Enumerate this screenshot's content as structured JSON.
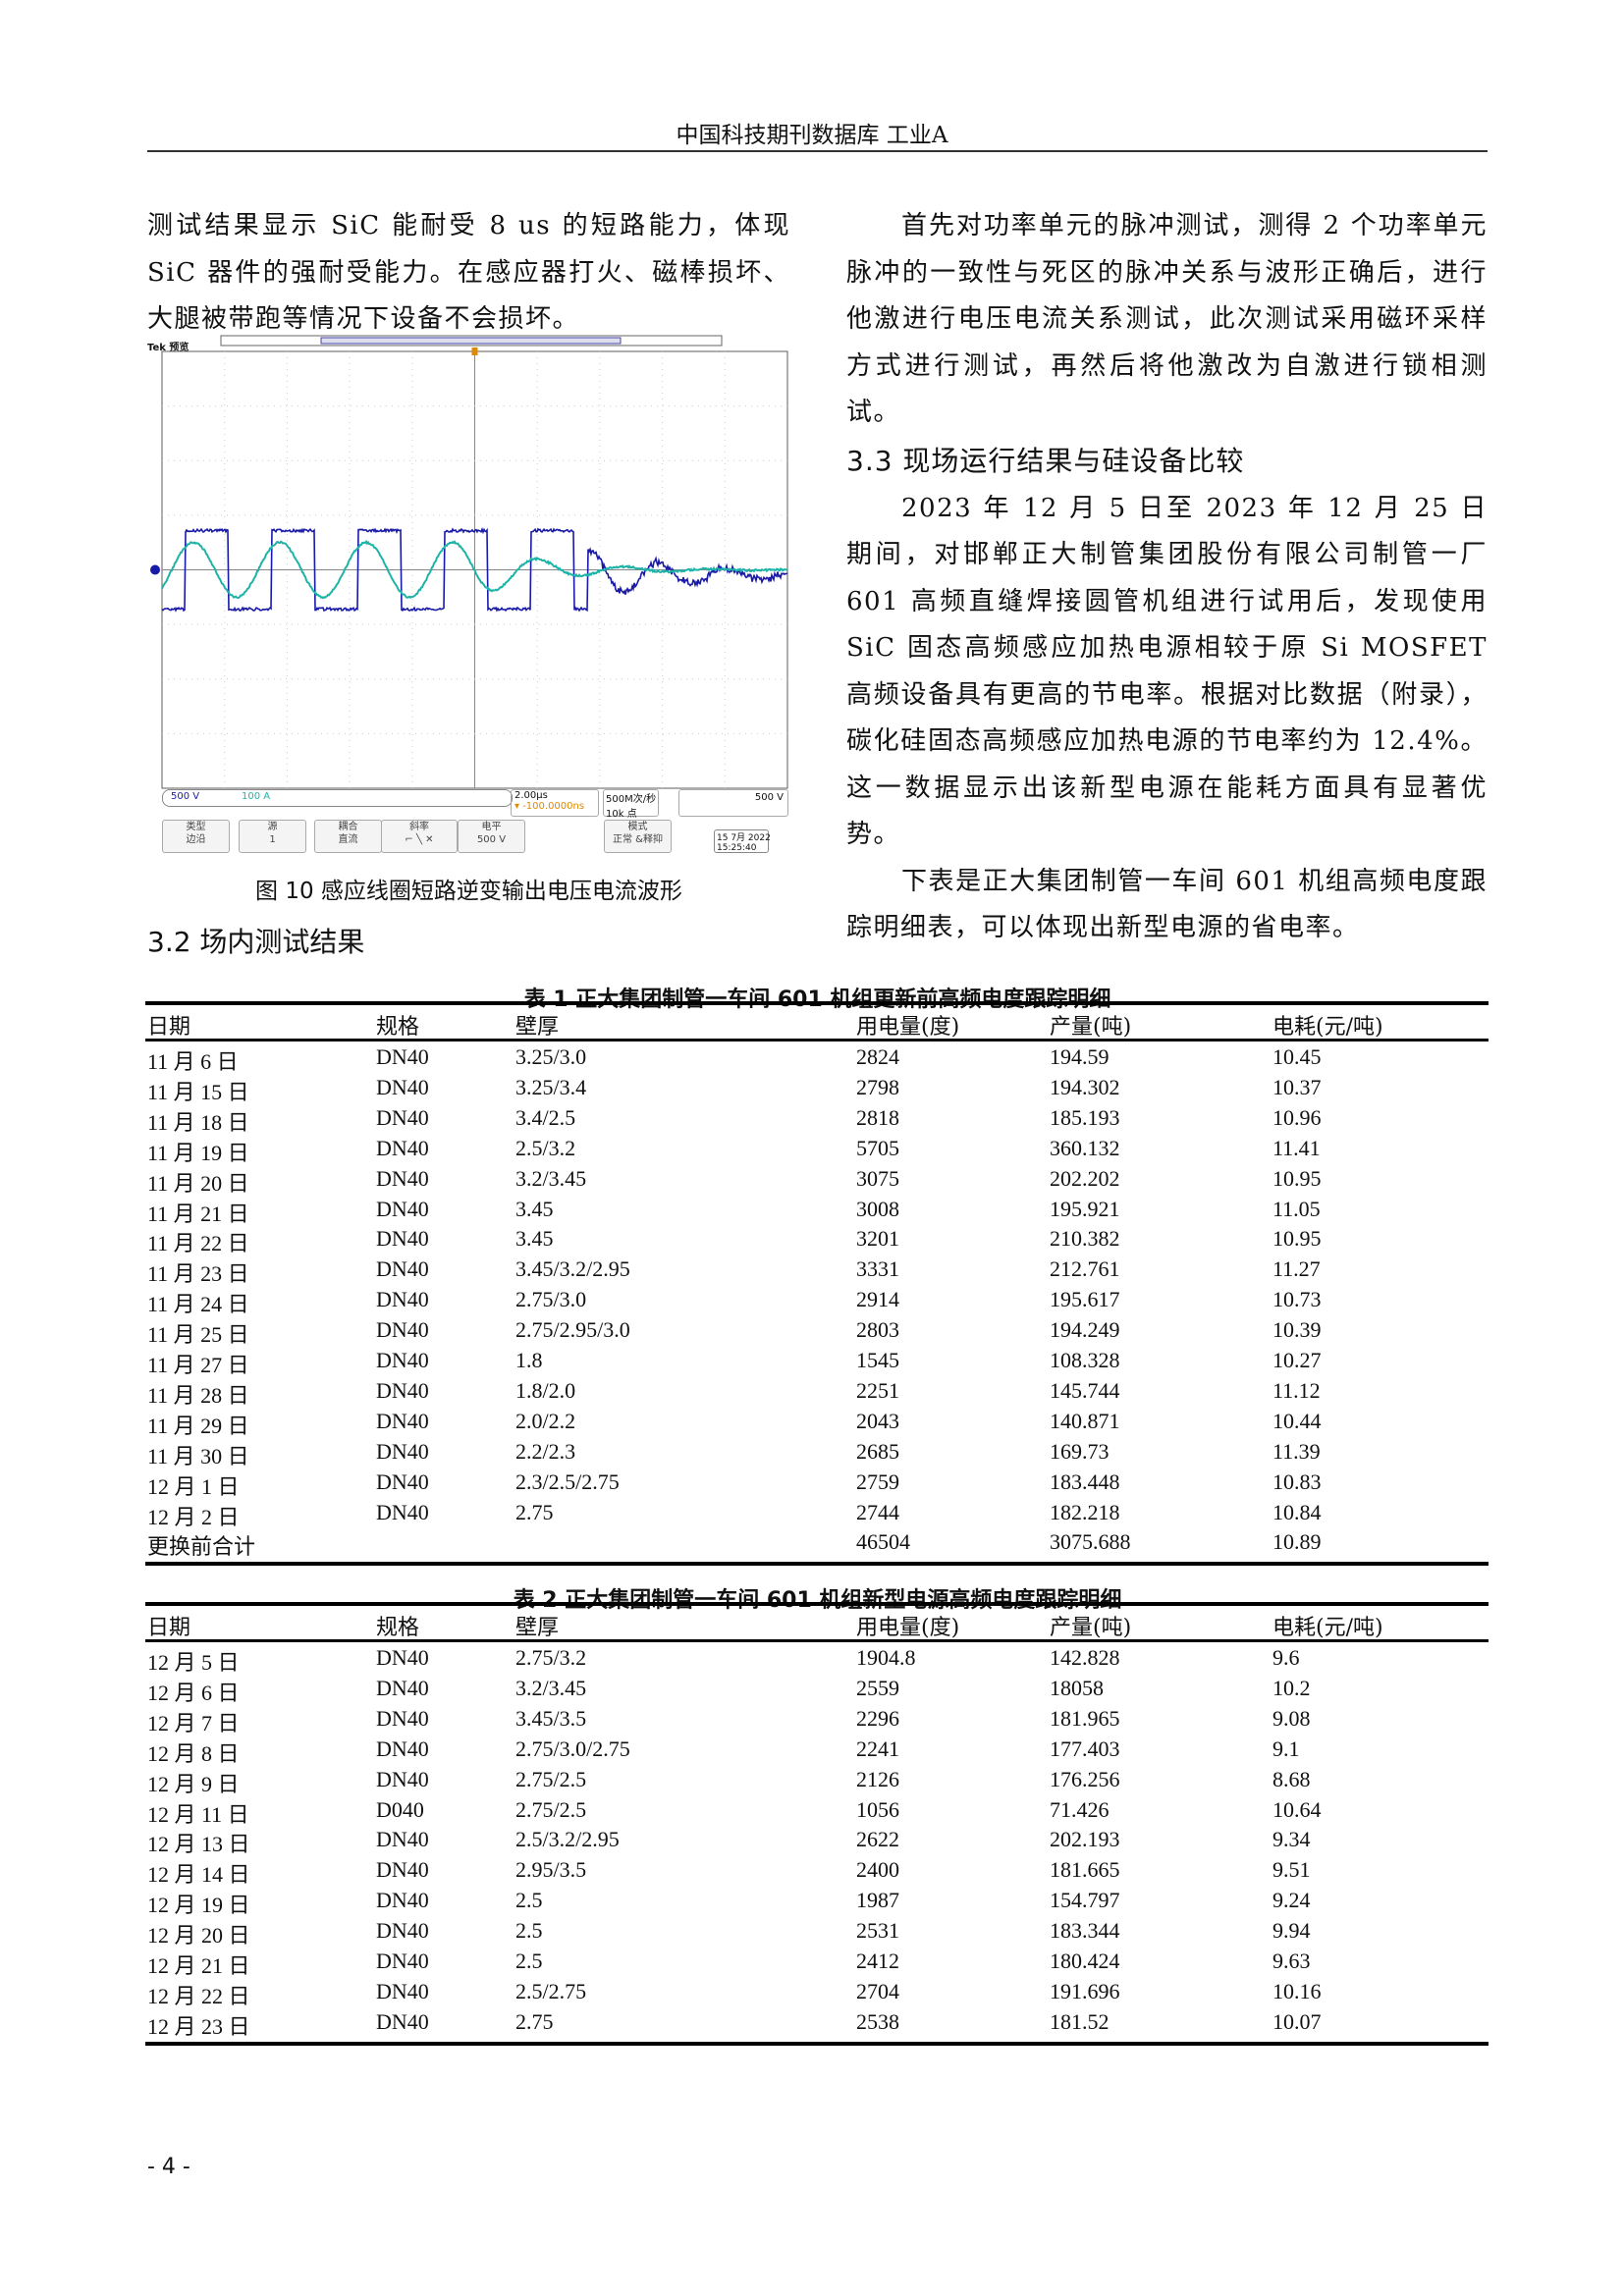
{
  "header": {
    "title": "中国科技期刊数据库  工业A"
  },
  "left": {
    "para1": "测试结果显示 SiC 能耐受 8 us 的短路能力，体现 SiC 器件的强耐受能力。在感应器打火、磁棒损坏、大腿被带跑等情况下设备不会损坏。",
    "figure": {
      "brand": "Tek 预览",
      "ch1": "500 V",
      "ch2": "100 A",
      "timebase": "2.00µs",
      "delay": "▾ -100.0000ns",
      "rate": "500M次/秒",
      "points": "10k 点",
      "trigger_level": "500 V",
      "buttons": [
        {
          "l1": "类型",
          "l2": "边沿"
        },
        {
          "l1": "源",
          "l2": "1"
        },
        {
          "l1": "耦合",
          "l2": "直流"
        },
        {
          "l1": "斜率",
          "l2": "⌐ ╲ ✕"
        },
        {
          "l1": "电平",
          "l2": "500 V"
        },
        {
          "l1": "模式",
          "l2": "正常 &释抑"
        }
      ],
      "date": "15 7月 2022",
      "time": "15:25:40",
      "colors": {
        "ch1": "#1a1aa8",
        "ch2": "#1fb3a8"
      },
      "caption": "图 10   感应线圈短路逆变输出电压电流波形"
    },
    "section_title": "3.2 场内测试结果"
  },
  "right": {
    "para1": "首先对功率单元的脉冲测试，测得 2 个功率单元脉冲的一致性与死区的脉冲关系与波形正确后，进行他激进行电压电流关系测试，此次测试采用磁环采样方式进行测试，再然后将他激改为自激进行锁相测试。",
    "section_title": "3.3 现场运行结果与硅设备比较",
    "para2": "2023 年 12 月 5 日至 2023 年 12 月 25 日期间，对邯郸正大制管集团股份有限公司制管一厂 601 高频直缝焊接圆管机组进行试用后，发现使用 SiC 固态高频感应加热电源相较于原 Si MOSFET 高频设备具有更高的节电率。根据对比数据（附录），碳化硅固态高频感应加热电源的节电率约为 12.4%。这一数据显示出该新型电源在能耗方面具有显著优势。",
    "para3": "下表是正大集团制管一车间 601 机组高频电度跟踪明细表，可以体现出新型电源的省电率。"
  },
  "table1": {
    "title": "表 1   正大集团制管一车间 601 机组更新前高频电度跟踪明细",
    "headers": [
      "日期",
      "规格",
      "壁厚",
      "用电量(度)",
      "产量(吨)",
      "电耗(元/吨)"
    ],
    "rows": [
      [
        "11 月 6 日",
        "DN40",
        "3.25/3.0",
        "2824",
        "194.59",
        "10.45"
      ],
      [
        "11 月 15 日",
        "DN40",
        "3.25/3.4",
        "2798",
        "194.302",
        "10.37"
      ],
      [
        "11 月 18 日",
        "DN40",
        "3.4/2.5",
        "2818",
        "185.193",
        "10.96"
      ],
      [
        "11 月 19 日",
        "DN40",
        "2.5/3.2",
        "5705",
        "360.132",
        "11.41"
      ],
      [
        "11 月 20 日",
        "DN40",
        "3.2/3.45",
        "3075",
        "202.202",
        "10.95"
      ],
      [
        "11 月 21 日",
        "DN40",
        "3.45",
        "3008",
        "195.921",
        "11.05"
      ],
      [
        "11 月 22 日",
        "DN40",
        "3.45",
        "3201",
        "210.382",
        "10.95"
      ],
      [
        "11 月 23 日",
        "DN40",
        "3.45/3.2/2.95",
        "3331",
        "212.761",
        "11.27"
      ],
      [
        "11 月 24 日",
        "DN40",
        "2.75/3.0",
        "2914",
        "195.617",
        "10.73"
      ],
      [
        "11 月 25 日",
        "DN40",
        "2.75/2.95/3.0",
        "2803",
        "194.249",
        "10.39"
      ],
      [
        "11 月 27 日",
        "DN40",
        "1.8",
        "1545",
        "108.328",
        "10.27"
      ],
      [
        "11 月 28 日",
        "DN40",
        "1.8/2.0",
        "2251",
        "145.744",
        "11.12"
      ],
      [
        "11 月 29 日",
        "DN40",
        "2.0/2.2",
        "2043",
        "140.871",
        "10.44"
      ],
      [
        "11 月 30 日",
        "DN40",
        "2.2/2.3",
        "2685",
        "169.73",
        "11.39"
      ],
      [
        "12 月 1 日",
        "DN40",
        "2.3/2.5/2.75",
        "2759",
        "183.448",
        "10.83"
      ],
      [
        "12 月 2 日",
        "DN40",
        "2.75",
        "2744",
        "182.218",
        "10.84"
      ],
      [
        "更换前合计",
        "",
        "",
        "46504",
        "3075.688",
        "10.89"
      ]
    ]
  },
  "table2": {
    "title": "表 2   正大集团制管一车间 601 机组新型电源高频电度跟踪明细",
    "headers": [
      "日期",
      "规格",
      "壁厚",
      "用电量(度)",
      "产量(吨)",
      "电耗(元/吨)"
    ],
    "rows": [
      [
        "12 月 5 日",
        "DN40",
        "2.75/3.2",
        "1904.8",
        "142.828",
        "9.6"
      ],
      [
        "12 月 6 日",
        "DN40",
        "3.2/3.45",
        "2559",
        "18058",
        "10.2"
      ],
      [
        "12 月 7 日",
        "DN40",
        "3.45/3.5",
        "2296",
        "181.965",
        "9.08"
      ],
      [
        "12 月 8 日",
        "DN40",
        "2.75/3.0/2.75",
        "2241",
        "177.403",
        "9.1"
      ],
      [
        "12 月 9 日",
        "DN40",
        "2.75/2.5",
        "2126",
        "176.256",
        "8.68"
      ],
      [
        "12 月 11 日",
        "D040",
        "2.75/2.5",
        "1056",
        "71.426",
        "10.64"
      ],
      [
        "12 月 13 日",
        "DN40",
        "2.5/3.2/2.95",
        "2622",
        "202.193",
        "9.34"
      ],
      [
        "12 月 14 日",
        "DN40",
        "2.95/3.5",
        "2400",
        "181.665",
        "9.51"
      ],
      [
        "12 月 19 日",
        "DN40",
        "2.5",
        "1987",
        "154.797",
        "9.24"
      ],
      [
        "12 月 20 日",
        "DN40",
        "2.5",
        "2531",
        "183.344",
        "9.94"
      ],
      [
        "12 月 21 日",
        "DN40",
        "2.5",
        "2412",
        "180.424",
        "9.63"
      ],
      [
        "12 月 22 日",
        "DN40",
        "2.5/2.75",
        "2704",
        "191.696",
        "10.16"
      ],
      [
        "12 月 23 日",
        "DN40",
        "2.75",
        "2538",
        "181.52",
        "10.07"
      ]
    ]
  },
  "footer": {
    "page": "- 4 -"
  }
}
